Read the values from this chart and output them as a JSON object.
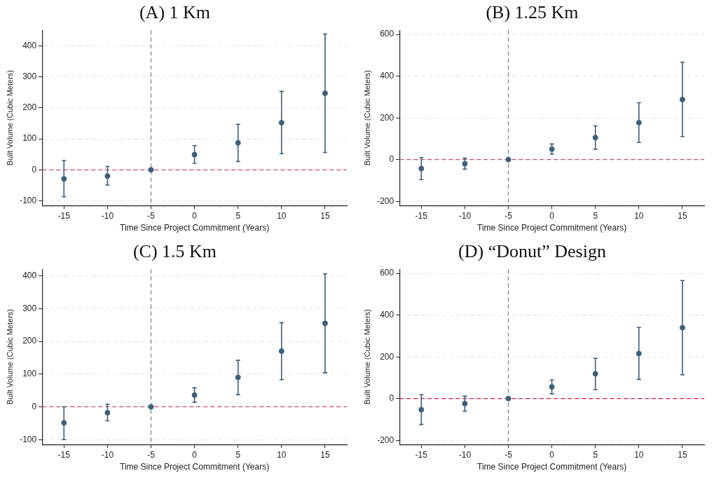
{
  "chart_data": [
    {
      "type": "scatter",
      "title": "(A) 1 Km",
      "xlabel": "Time Since Project Commitment (Years)",
      "ylabel": "Built Volume (Cubic Meters)",
      "x": [
        -15,
        -10,
        -5,
        0,
        5,
        10,
        15
      ],
      "values": [
        -29,
        -20,
        0,
        49,
        87,
        152,
        247
      ],
      "errors": [
        [
          -87,
          30
        ],
        [
          -49,
          11
        ],
        null,
        [
          21,
          78
        ],
        [
          27,
          147
        ],
        [
          52,
          253
        ],
        [
          56,
          438
        ]
      ],
      "color": "#3d5f7b",
      "xlim": [
        -17.5,
        17.5
      ],
      "xticks": [
        -15,
        -10,
        -5,
        0,
        5,
        10,
        15
      ],
      "ylim": [
        -115,
        450
      ],
      "yticks": [
        -100,
        0,
        100,
        200,
        300,
        400
      ],
      "grid": "y",
      "marker": "circle",
      "ref_lines": [
        {
          "axis": "y",
          "value": 0,
          "color": "#d6456e",
          "line_style": "dashed"
        },
        {
          "axis": "x",
          "value": -5,
          "color": "#7f7f7f",
          "line_style": "dashed"
        }
      ]
    },
    {
      "type": "scatter",
      "title": "(B) 1.25 Km",
      "xlabel": "Time Since Project Commitment (Years)",
      "ylabel": "Built Volume (Cubic Meters)",
      "x": [
        -15,
        -10,
        -5,
        0,
        5,
        10,
        15
      ],
      "values": [
        -43,
        -20,
        0,
        50,
        106,
        177,
        288
      ],
      "errors": [
        [
          -96,
          10
        ],
        [
          -46,
          7
        ],
        null,
        [
          26,
          75
        ],
        [
          50,
          162
        ],
        [
          82,
          273
        ],
        [
          111,
          467
        ]
      ],
      "color": "#3d5f7b",
      "xlim": [
        -17.5,
        17.5
      ],
      "xticks": [
        -15,
        -10,
        -5,
        0,
        5,
        10,
        15
      ],
      "ylim": [
        -220,
        620
      ],
      "yticks": [
        -200,
        0,
        200,
        400,
        600
      ],
      "grid": "y",
      "marker": "circle",
      "ref_lines": [
        {
          "axis": "y",
          "value": 0,
          "color": "#d6456e",
          "line_style": "dashed"
        },
        {
          "axis": "x",
          "value": -5,
          "color": "#7f7f7f",
          "line_style": "dashed"
        }
      ]
    },
    {
      "type": "scatter",
      "title": "(C) 1.5 Km",
      "xlabel": "Time Since Project Commitment (Years)",
      "ylabel": "Built Volume (Cubic Meters)",
      "x": [
        -15,
        -10,
        -5,
        0,
        5,
        10,
        15
      ],
      "values": [
        -49,
        -18,
        0,
        36,
        90,
        170,
        255
      ],
      "errors": [
        [
          -100,
          0
        ],
        [
          -43,
          8
        ],
        null,
        [
          14,
          58
        ],
        [
          37,
          142
        ],
        [
          83,
          257
        ],
        [
          104,
          406
        ]
      ],
      "color": "#3d5f7b",
      "xlim": [
        -17.5,
        17.5
      ],
      "xticks": [
        -15,
        -10,
        -5,
        0,
        5,
        10,
        15
      ],
      "ylim": [
        -115,
        420
      ],
      "yticks": [
        -100,
        0,
        100,
        200,
        300,
        400
      ],
      "grid": "y",
      "marker": "circle",
      "ref_lines": [
        {
          "axis": "y",
          "value": 0,
          "color": "#d6456e",
          "line_style": "dashed"
        },
        {
          "axis": "x",
          "value": -5,
          "color": "#7f7f7f",
          "line_style": "dashed"
        }
      ]
    },
    {
      "type": "scatter",
      "title": "(D) “Donut” Design",
      "xlabel": "Time Since Project Commitment (Years)",
      "ylabel": "Built Volume (Cubic Meters)",
      "x": [
        -15,
        -10,
        -5,
        0,
        5,
        10,
        15
      ],
      "values": [
        -53,
        -24,
        0,
        56,
        119,
        216,
        340
      ],
      "errors": [
        [
          -124,
          19
        ],
        [
          -60,
          12
        ],
        null,
        [
          23,
          90
        ],
        [
          43,
          193
        ],
        [
          92,
          341
        ],
        [
          114,
          566
        ]
      ],
      "color": "#3d5f7b",
      "xlim": [
        -17.5,
        17.5
      ],
      "xticks": [
        -15,
        -10,
        -5,
        0,
        5,
        10,
        15
      ],
      "ylim": [
        -220,
        620
      ],
      "yticks": [
        -200,
        0,
        200,
        400,
        600
      ],
      "grid": "y",
      "marker": "circle",
      "ref_lines": [
        {
          "axis": "y",
          "value": 0,
          "color": "#e5103f",
          "line_style": "dashed"
        },
        {
          "axis": "x",
          "value": -5,
          "color": "#7f7f7f",
          "line_style": "dashed"
        }
      ]
    }
  ]
}
